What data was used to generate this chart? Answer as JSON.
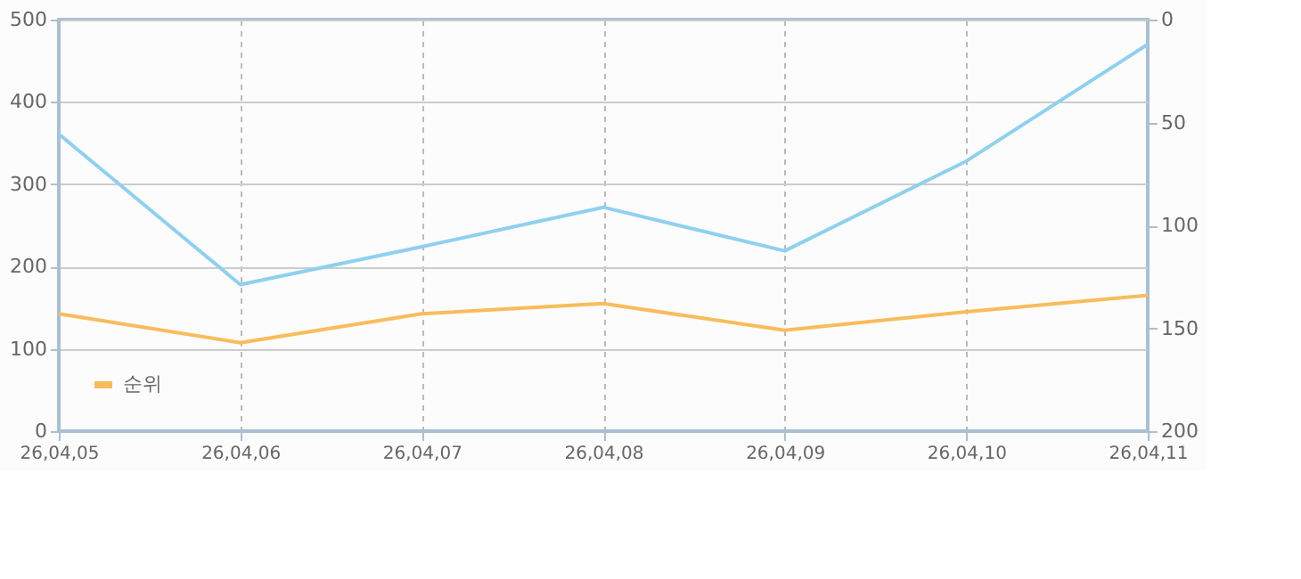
{
  "chart_data": {
    "type": "line",
    "categories": [
      "26,04,05",
      "26,04,06",
      "26,04,07",
      "26,04,08",
      "26,04,09",
      "26,04,10",
      "26,04,11"
    ],
    "series": [
      {
        "color": "#8fd0f0",
        "values": [
          361,
          178,
          224,
          272,
          219,
          328,
          470
        ]
      },
      {
        "name": "순위",
        "color": "#f9bc5c",
        "axis": "y2",
        "values": [
          143,
          157,
          143,
          138,
          151,
          142,
          134
        ]
      }
    ],
    "ylim": [
      0,
      500
    ],
    "yticks": [
      0,
      100,
      200,
      300,
      400,
      500
    ],
    "y2lim": [
      200,
      0
    ],
    "y2ticks": [
      0,
      50,
      100,
      150,
      200
    ],
    "grid": true,
    "legend": "bottom left",
    "line_style": "solid",
    "marker": "none"
  }
}
